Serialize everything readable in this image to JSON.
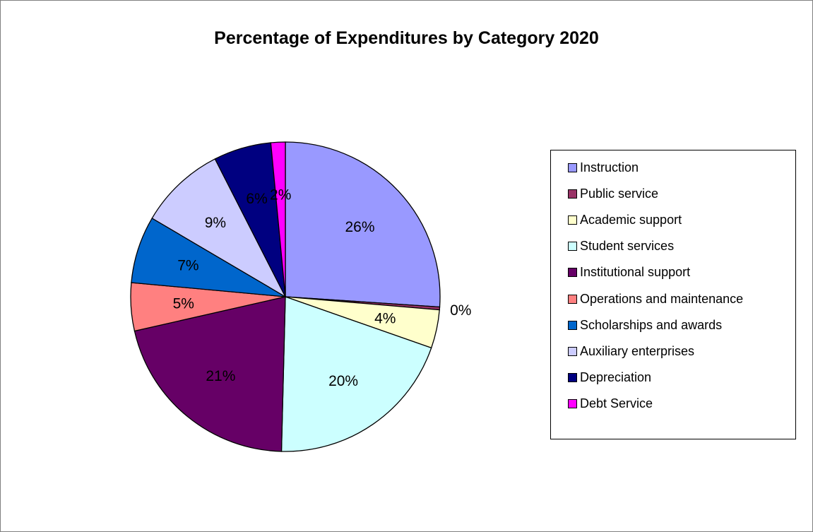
{
  "chart_data": {
    "type": "pie",
    "title": "Percentage of Expenditures by Category 2020",
    "legend_position": "right",
    "slices": [
      {
        "name": "Instruction",
        "value": 26,
        "label": "26%",
        "color": "#9999FF"
      },
      {
        "name": "Public service",
        "value": 0.3,
        "label": "0%",
        "color": "#993366"
      },
      {
        "name": "Academic support",
        "value": 4,
        "label": "4%",
        "color": "#FFFFCC"
      },
      {
        "name": "Student services",
        "value": 20,
        "label": "20%",
        "color": "#CCFFFF"
      },
      {
        "name": "Institutional support",
        "value": 21,
        "label": "21%",
        "color": "#660066"
      },
      {
        "name": "Operations and maintenance",
        "value": 5,
        "label": "5%",
        "color": "#FF8080"
      },
      {
        "name": "Scholarships and awards",
        "value": 7,
        "label": "7%",
        "color": "#0066CC"
      },
      {
        "name": "Auxiliary enterprises",
        "value": 9,
        "label": "9%",
        "color": "#CCCCFF"
      },
      {
        "name": "Depreciation",
        "value": 6,
        "label": "6%",
        "color": "#000080"
      },
      {
        "name": "Debt Service",
        "value": 1.5,
        "label": "2%",
        "color": "#FF00FF"
      }
    ]
  }
}
